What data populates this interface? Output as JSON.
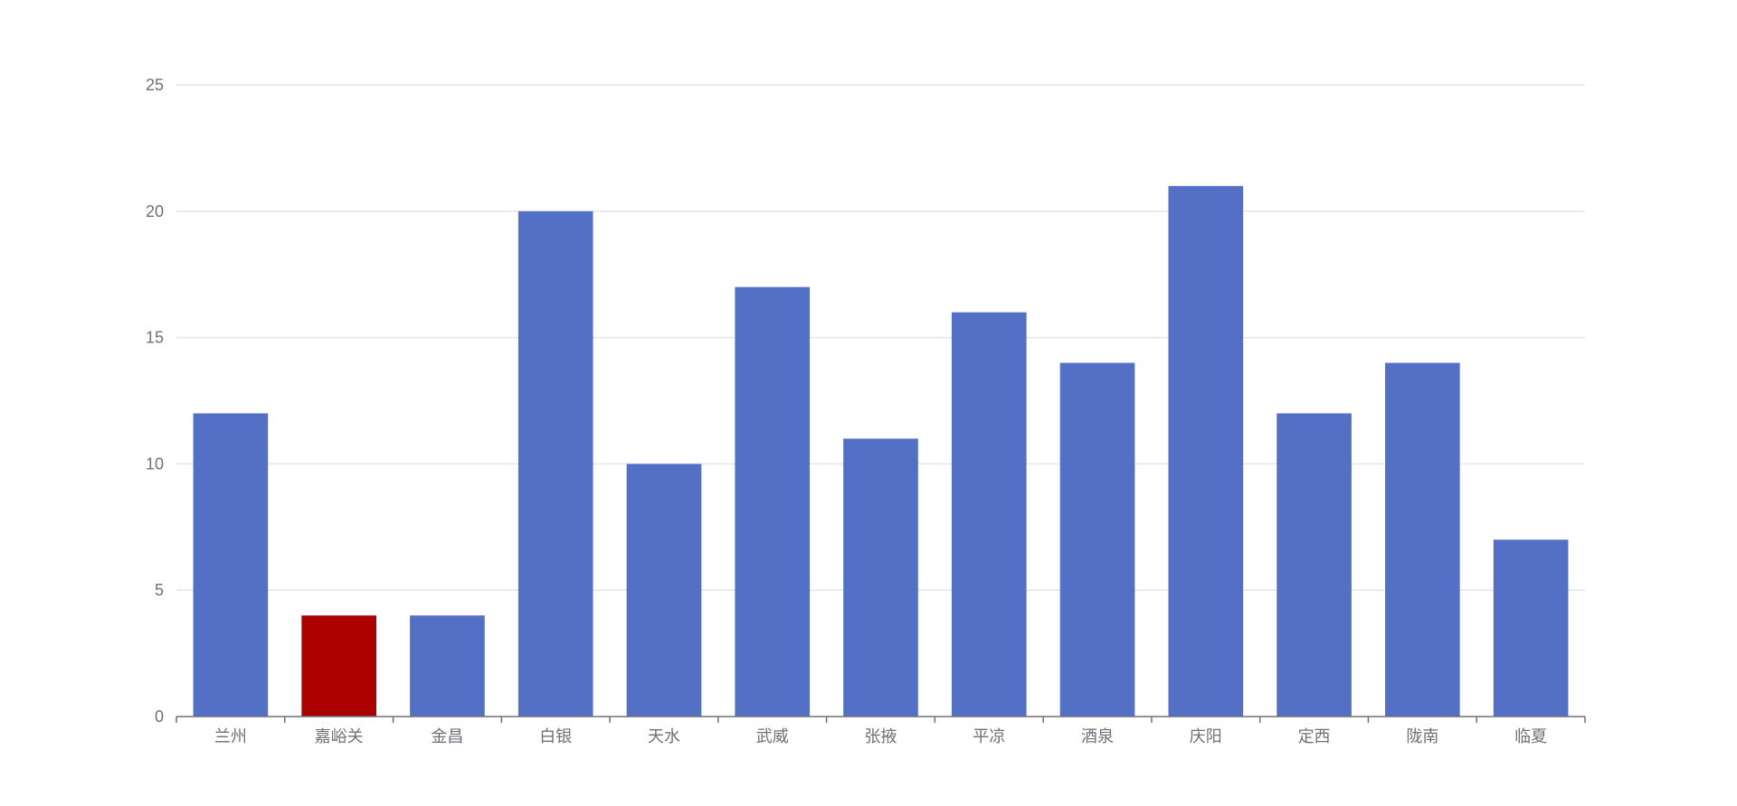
{
  "chart_data": {
    "type": "bar",
    "categories": [
      "兰州",
      "嘉峪关",
      "金昌",
      "白银",
      "天水",
      "武威",
      "张掖",
      "平凉",
      "酒泉",
      "庆阳",
      "定西",
      "陇南",
      "临夏"
    ],
    "values": [
      12,
      4,
      4,
      20,
      10,
      17,
      11,
      16,
      14,
      21,
      12,
      14,
      7
    ],
    "highlight_index": 1,
    "ylim": [
      0,
      25
    ],
    "yticks": [
      0,
      5,
      10,
      15,
      20,
      25
    ],
    "grid": true,
    "legend": "none",
    "colors": {
      "bar": "#5470c6",
      "highlight": "#aa0000",
      "grid": "#e0e6f1",
      "axis": "#6e7079",
      "text": "#6e7079"
    }
  }
}
